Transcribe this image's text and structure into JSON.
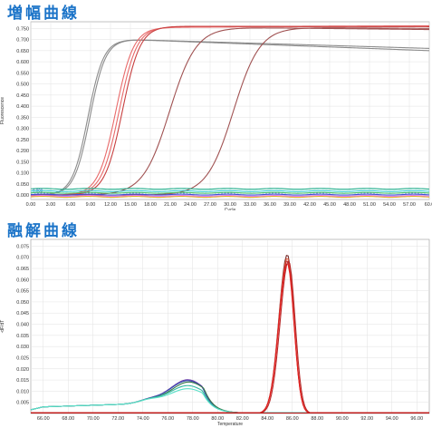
{
  "amplification": {
    "title": "増幅曲線",
    "chart_data": {
      "type": "line",
      "xlabel": "Cycle",
      "ylabel": "Fluorescence",
      "xlim": [
        0,
        60
      ],
      "ylim": [
        -0.02,
        0.78
      ],
      "xticks": [
        "0.00",
        "3.00",
        "6.00",
        "9.00",
        "12.00",
        "15.00",
        "18.00",
        "21.00",
        "24.00",
        "27.00",
        "30.00",
        "33.00",
        "36.00",
        "39.00",
        "42.00",
        "45.00",
        "48.00",
        "51.00",
        "54.00",
        "57.00",
        "60.0"
      ],
      "yticks": [
        "0.000",
        "0.050",
        "0.100",
        "0.150",
        "0.200",
        "0.250",
        "0.300",
        "0.350",
        "0.400",
        "0.450",
        "0.500",
        "0.550",
        "0.600",
        "0.650",
        "0.700",
        "0.750"
      ],
      "threshold": {
        "label": "0.009",
        "value": 0.009
      },
      "grid": true,
      "series": [
        {
          "color": "#8c8c8c",
          "kind": "sigmoid",
          "midpoint": 8.6,
          "slope": 0.85,
          "plateau": 0.7,
          "drift_end": 0.65
        },
        {
          "color": "#8c8c8c",
          "kind": "sigmoid",
          "midpoint": 8.9,
          "slope": 0.85,
          "plateau": 0.7,
          "drift_end": 0.66
        },
        {
          "color": "#e86a6a",
          "kind": "sigmoid",
          "midpoint": 12.8,
          "slope": 0.75,
          "plateau": 0.755,
          "drift_end": 0.76
        },
        {
          "color": "#e86a6a",
          "kind": "sigmoid",
          "midpoint": 13.3,
          "slope": 0.75,
          "plateau": 0.757,
          "drift_end": 0.762
        },
        {
          "color": "#c84040",
          "kind": "sigmoid",
          "midpoint": 13.8,
          "slope": 0.75,
          "plateau": 0.76,
          "drift_end": 0.758
        },
        {
          "color": "#a05252",
          "kind": "sigmoid",
          "midpoint": 20.9,
          "slope": 0.5,
          "plateau": 0.755,
          "drift_end": 0.745
        },
        {
          "color": "#a05252",
          "kind": "sigmoid",
          "midpoint": 30.5,
          "slope": 0.5,
          "plateau": 0.755,
          "drift_end": 0.75
        },
        {
          "color": "#1fae8c",
          "kind": "flat",
          "value": 0.028
        },
        {
          "color": "#2ccad0",
          "kind": "flat",
          "value": 0.018
        },
        {
          "color": "#46c46a",
          "kind": "flat",
          "value": 0.01
        },
        {
          "color": "#3b4fd6",
          "kind": "flat",
          "value": 0.002
        },
        {
          "color": "#e87ae8",
          "kind": "flat",
          "value": -0.004
        },
        {
          "color": "#e0b030",
          "kind": "flat",
          "value": -0.008
        }
      ]
    }
  },
  "melt": {
    "title": "融解曲線",
    "chart_data": {
      "type": "line",
      "xlabel": "Temperature",
      "ylabel": "-dF/dT",
      "xlim": [
        65,
        97
      ],
      "ylim": [
        0.0,
        0.078
      ],
      "xticks": [
        "66.00",
        "68.00",
        "70.00",
        "72.00",
        "74.00",
        "76.00",
        "78.00",
        "80.00",
        "82.00",
        "84.00",
        "86.00",
        "88.00",
        "90.00",
        "92.00",
        "94.00",
        "96.00"
      ],
      "yticks": [
        "0.005",
        "0.010",
        "0.015",
        "0.020",
        "0.025",
        "0.030",
        "0.035",
        "0.040",
        "0.045",
        "0.050",
        "0.055",
        "0.060",
        "0.065",
        "0.070",
        "0.075"
      ],
      "grid": true,
      "series": [
        {
          "color": "#6a3aa8",
          "kind": "broad",
          "peak_x": 77.6,
          "peak_y": 0.0153
        },
        {
          "color": "#3a4fb0",
          "kind": "broad",
          "peak_x": 77.6,
          "peak_y": 0.0149
        },
        {
          "color": "#3a7a4a",
          "kind": "broad",
          "peak_x": 77.7,
          "peak_y": 0.0143
        },
        {
          "color": "#2fb8a0",
          "kind": "broad",
          "peak_x": 77.6,
          "peak_y": 0.0127
        },
        {
          "color": "#5ae0c8",
          "kind": "broad",
          "peak_x": 77.6,
          "peak_y": 0.0113
        },
        {
          "color": "#7a3030",
          "kind": "sharp",
          "peak_x": 85.6,
          "peak_y": 0.0712
        },
        {
          "color": "#e06040",
          "kind": "sharp",
          "peak_x": 85.6,
          "peak_y": 0.0697
        },
        {
          "color": "#c83030",
          "kind": "sharp",
          "peak_x": 85.6,
          "peak_y": 0.0686
        },
        {
          "color": "#e82020",
          "kind": "sharp",
          "peak_x": 85.6,
          "peak_y": 0.0672
        },
        {
          "color": "#b82828",
          "kind": "sharp",
          "peak_x": 85.7,
          "peak_y": 0.0683
        },
        {
          "color": "#c01818",
          "kind": "flat",
          "value": 0.0002
        }
      ]
    }
  }
}
